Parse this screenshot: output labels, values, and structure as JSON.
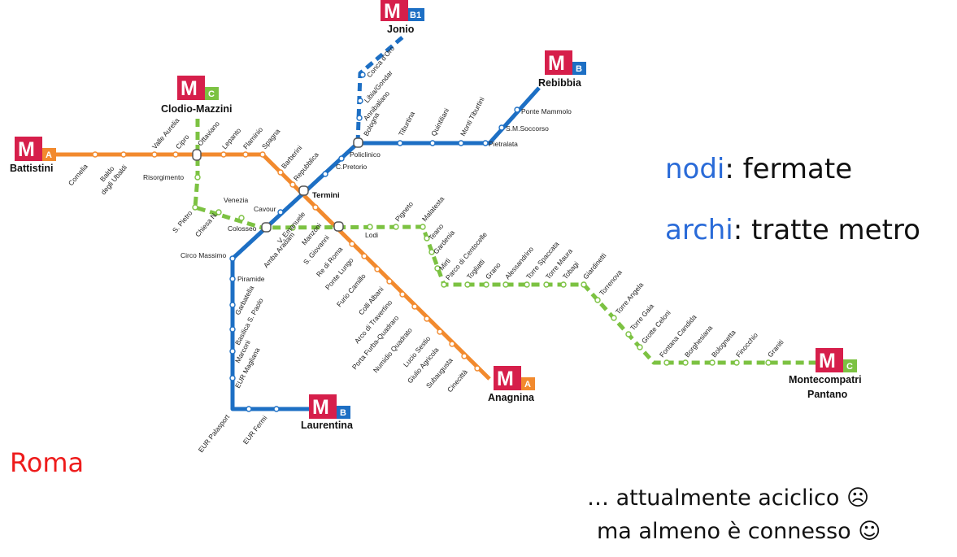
{
  "slide": {
    "nodi_word": "nodi",
    "nodi_rest": ": fermate",
    "archi_word": "archi",
    "archi_rest": ": tratte metro",
    "city": "Roma",
    "note_line1": "… attualmente aciclico ☹",
    "note_line2": "ma almeno è connesso ☺"
  },
  "colors": {
    "line_a": "#f28a2e",
    "line_b": "#1d6fc4",
    "line_c": "#7cc242",
    "logo_red": "#d61f4b",
    "keyword_blue": "#2a6bd8",
    "city_red": "#ee1c1c"
  },
  "lines": {
    "A": {
      "name": "A",
      "stations": [
        "Battistini",
        "Cornelia",
        "Baldo degli Ubaldi",
        "Valle Aurelia",
        "Cipro",
        "Ottaviano",
        "Lepanto",
        "Flaminio",
        "Spagna",
        "Barberini",
        "Repubblica",
        "Termini",
        "V. Emanuele",
        "Manzoni",
        "S. Giovanni",
        "Re di Roma",
        "Ponte Lungo",
        "Furio Camillo",
        "Colli Albani",
        "Arco di Travertino",
        "Porta Furba-Quadraro",
        "Numidio Quadrato",
        "Lucio Sestio",
        "Giulio Agricola",
        "Subaugusta",
        "Cinecittà",
        "Anagnina"
      ]
    },
    "B": {
      "name": "B",
      "stations": [
        "Laurentina",
        "EUR Fermi",
        "EUR Palasport",
        "EUR Magliana",
        "Marconi",
        "Basilica S. Paolo",
        "Garbatella",
        "Piramide",
        "Circo Massimo",
        "Colosseo",
        "Cavour",
        "Termini",
        "C.Pretorio",
        "Policlinico",
        "Bologna",
        "Tiburtina",
        "Quintiliani",
        "Monti Tiburtini",
        "Pietralata",
        "S.M.Soccorso",
        "Ponte Mammolo",
        "Rebibbia"
      ]
    },
    "B1": {
      "name": "B1",
      "stations": [
        "Bologna",
        "Annibaliano",
        "Libia/Gondar",
        "Conca d'Oro",
        "Jonio"
      ]
    },
    "C": {
      "name": "C",
      "stations": [
        "Clodio-Mazzini",
        "Ottaviano",
        "Risorgimento",
        "S. Pietro",
        "Chiesa N.",
        "Venezia",
        "Colosseo",
        "Amba Aradam",
        "S. Giovanni",
        "Lodi",
        "Pigneto",
        "Malatesta",
        "Teano",
        "Gardenia",
        "Mirti",
        "Parco di Centocelle",
        "Togliatti",
        "Grano",
        "Alessandrino",
        "Torre Spaccata",
        "Torre Maura",
        "Tobagi",
        "Giardinetti",
        "Torrenova",
        "Torre Angela",
        "Torre Gaia",
        "Grotte Celoni",
        "Fontana Candida",
        "Borghesiana",
        "Bolognetta",
        "Finocchio",
        "Graniti",
        "Montecompatri Pantano"
      ]
    }
  },
  "termini": {
    "battistini": {
      "name": "Battistini",
      "logo_m": "M",
      "logo_line": "A"
    },
    "clodio": {
      "name": "Clodio-Mazzini",
      "logo_m": "M",
      "logo_line": "C"
    },
    "jonio": {
      "name": "Jonio",
      "logo_m": "M",
      "logo_line": "B1"
    },
    "rebibbia": {
      "name": "Rebibbia",
      "logo_m": "M",
      "logo_line": "B"
    },
    "anagnina": {
      "name": "Anagnina",
      "logo_m": "M",
      "logo_line": "A"
    },
    "laurentina": {
      "name": "Laurentina",
      "logo_m": "M",
      "logo_line": "B"
    },
    "montecompatri": {
      "name_line1": "Montecompatri",
      "name_line2": "Pantano",
      "logo_m": "M",
      "logo_line": "C"
    },
    "termini_hub": {
      "name": "Termini"
    }
  },
  "station_labels": {
    "cornelia": "Cornelia",
    "baldo_1": "Baldo",
    "baldo_2": "degli Ubaldi",
    "valle_aurelia": "Valle Aurelia",
    "cipro": "Cipro",
    "ottaviano": "Ottaviano",
    "lepanto": "Lepanto",
    "flaminio": "Flaminio",
    "spagna": "Spagna",
    "barberini": "Barberini",
    "repubblica": "Repubblica",
    "risorgimento": "Risorgimento",
    "s_pietro": "S. Pietro",
    "chiesa_n": "Chiesa N.",
    "venezia": "Venezia",
    "cavour": "Cavour",
    "colosseo": "Colosseo",
    "circo_massimo": "Circo Massimo",
    "v_emanuele": "V. Emanuele",
    "amba_aradam": "Amba Aradam",
    "manzoni": "Manzoni",
    "s_giovanni": "S. Giovanni",
    "re_di_roma": "Re di Roma",
    "ponte_lungo": "Ponte Lungo",
    "furio_camillo": "Furio Camillo",
    "colli_albani": "Colli Albani",
    "arco_travertino": "Arco di Travertino",
    "porta_furba": "Porta Furba-Quadraro",
    "numidio": "Numidio Quadrato",
    "lucio_sestio": "Lucio Sestio",
    "giulio_agricola": "Giulio Agricola",
    "subaugusta": "Subaugusta",
    "cinecitta": "Cinecittà",
    "piramide": "Piramide",
    "garbatella": "Garbatella",
    "basilica": "Basilica S. Paolo",
    "marconi": "Marconi",
    "eur_magliana": "EUR Magliana",
    "eur_palasport": "EUR Palasport",
    "eur_fermi": "EUR Fermi",
    "c_pretorio": "C.Pretorio",
    "policlinico": "Policlinico",
    "bologna": "Bologna",
    "annibaliano": "Annibaliano",
    "libia": "Libia/Gondar",
    "conca": "Conca d'Oro",
    "tiburtina": "Tiburtina",
    "quintiliani": "Quintiliani",
    "monti_tiburtini": "Monti Tiburtini",
    "pietralata": "Pietralata",
    "smsoccorso": "S.M.Soccorso",
    "ponte_mammolo": "Ponte Mammolo",
    "lodi": "Lodi",
    "pigneto": "Pigneto",
    "malatesta": "Malatesta",
    "teano": "Teano",
    "gardenia": "Gardenia",
    "mirti": "Mirti",
    "parco_centocelle": "Parco di Centocelle",
    "togliatti": "Togliatti",
    "grano": "Grano",
    "alessandrino": "Alessandrino",
    "torre_spaccata": "Torre Spaccata",
    "torre_maura": "Torre Maura",
    "tobagi": "Tobagi",
    "giardinetti": "Giardinetti",
    "torrenova": "Torrenova",
    "torre_angela": "Torre Angela",
    "torre_gaia": "Torre Gaia",
    "grotte_celoni": "Grotte Celoni",
    "fontana_candida": "Fontana Candida",
    "borghesiana": "Borghesiana",
    "bolognetta": "Bolognetta",
    "finocchio": "Finocchio",
    "graniti": "Graniti"
  }
}
